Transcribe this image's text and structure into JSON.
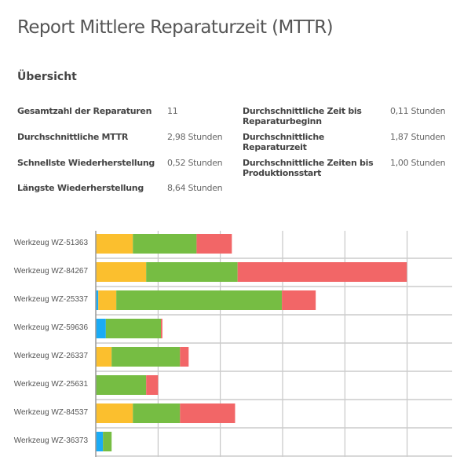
{
  "title": "Report Mittlere Reparaturzeit (MTTR)",
  "overview": {
    "heading": "Übersicht",
    "left": [
      {
        "label": "Gesamtzahl der Reparaturen",
        "value": "11"
      },
      {
        "label": "Durchschnittliche MTTR",
        "value": "2,98 Stunden"
      },
      {
        "label": "Schnellste Wiederherstellung",
        "value": "0,52 Stunden"
      },
      {
        "label": "Längste Wiederherstellung",
        "value": "8,64 Stunden"
      }
    ],
    "right": [
      {
        "label": "Durchschnittliche Zeit bis Reparaturbeginn",
        "value": "0,11 Stunden"
      },
      {
        "label": "Durchschnittliche Reparaturzeit",
        "value": "1,87 Stunden"
      },
      {
        "label": "Durchschnittliche Zeiten bis Produktionsstart",
        "value": "1,00 Stunden"
      }
    ]
  },
  "chart_data": {
    "type": "bar",
    "orientation": "horizontal",
    "stacked": true,
    "unit": "Stunden",
    "categories": [
      "Werkzeug WZ-51363",
      "Werkzeug WZ-84267",
      "Werkzeug WZ-25337",
      "Werkzeug WZ-59636",
      "Werkzeug WZ-26337",
      "Werkzeug WZ-25631",
      "Werkzeug WZ-84537",
      "Werkzeug WZ-36373"
    ],
    "series": [
      {
        "color": "#1aabf5",
        "values": [
          0,
          0,
          0.07,
          0.28,
          0,
          0,
          0,
          0.2
        ]
      },
      {
        "color": "#fbbf2e",
        "values": [
          1.03,
          1.4,
          0.5,
          0,
          0.44,
          0,
          1.03,
          0
        ]
      },
      {
        "color": "#76bd43",
        "values": [
          1.77,
          2.54,
          4.6,
          1.53,
          1.9,
          1.4,
          1.31,
          0.24
        ]
      },
      {
        "color": "#f26667",
        "values": [
          0.98,
          4.7,
          0.94,
          0.04,
          0.24,
          0.33,
          1.53,
          0
        ]
      }
    ],
    "xlim": [
      0,
      9.9
    ],
    "grid_step": 1.73,
    "grid": true,
    "tick_labels_shown": false,
    "legend": "none"
  }
}
